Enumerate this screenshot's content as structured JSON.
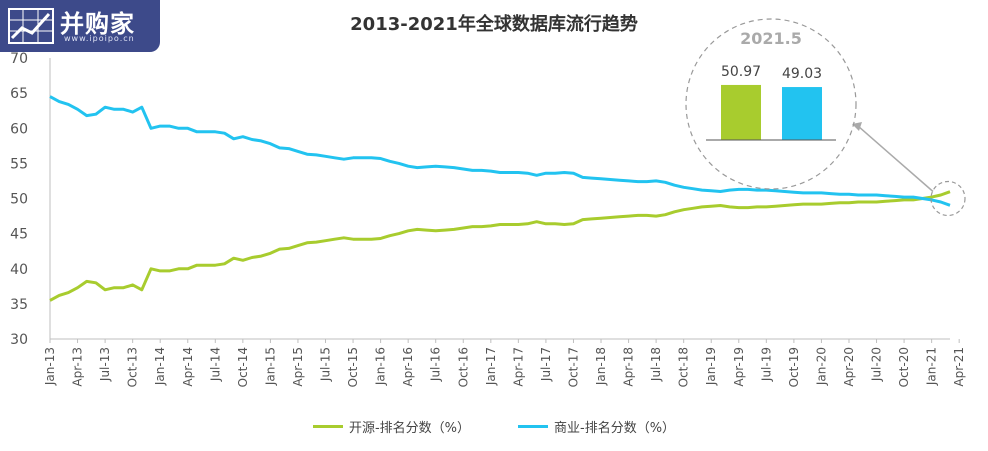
{
  "logo": {
    "name": "并购家",
    "sub": "www.ipoipo.cn"
  },
  "colors": {
    "open_source": "#a8cc2e",
    "commercial": "#22c3f0",
    "logo_bg": "#3d4a8a"
  },
  "chart_data": {
    "type": "line",
    "title": "2013-2021年全球数据库流行趋势",
    "ylim": [
      30,
      70
    ],
    "yticks": [
      30,
      35,
      40,
      45,
      50,
      55,
      60,
      65,
      70
    ],
    "x_start": "Jan-13",
    "x_end": "Jun-21",
    "xtick_labels": [
      "Jan-13",
      "Apr-13",
      "Jul-13",
      "Oct-13",
      "Jan-14",
      "Apr-14",
      "Jul-14",
      "Oct-14",
      "Jan-15",
      "Apr-15",
      "Jul-15",
      "Oct-15",
      "Jan-16",
      "Apr-16",
      "Jul-16",
      "Oct-16",
      "Jan-17",
      "Apr-17",
      "Jul-17",
      "Oct-17",
      "Jan-18",
      "Apr-18",
      "Jul-18",
      "Oct-18",
      "Jan-19",
      "Apr-19",
      "Jul-19",
      "Oct-19",
      "Jan-20",
      "Apr-20",
      "Jul-20",
      "Oct-20",
      "Jan-21",
      "Apr-21"
    ],
    "series": [
      {
        "name": "开源-排名分数（%）",
        "color": "#a8cc2e",
        "values": [
          35.5,
          36.2,
          36.6,
          37.3,
          38.2,
          38.0,
          37.0,
          37.3,
          37.3,
          37.7,
          37.0,
          40.0,
          39.7,
          39.7,
          40.0,
          40.0,
          40.5,
          40.5,
          40.5,
          40.7,
          41.5,
          41.2,
          41.6,
          41.8,
          42.2,
          42.8,
          42.9,
          43.3,
          43.7,
          43.8,
          44.0,
          44.2,
          44.4,
          44.2,
          44.2,
          44.2,
          44.3,
          44.7,
          45.0,
          45.4,
          45.6,
          45.5,
          45.4,
          45.5,
          45.6,
          45.8,
          46.0,
          46.0,
          46.1,
          46.3,
          46.3,
          46.3,
          46.4,
          46.7,
          46.4,
          46.4,
          46.3,
          46.4,
          47.0,
          47.1,
          47.2,
          47.3,
          47.4,
          47.5,
          47.6,
          47.6,
          47.5,
          47.7,
          48.1,
          48.4,
          48.6,
          48.8,
          48.9,
          49.0,
          48.8,
          48.7,
          48.7,
          48.8,
          48.8,
          48.9,
          49.0,
          49.1,
          49.2,
          49.2,
          49.2,
          49.3,
          49.4,
          49.4,
          49.5,
          49.5,
          49.5,
          49.6,
          49.7,
          49.8,
          49.8,
          50.0,
          50.2,
          50.5,
          50.97
        ]
      },
      {
        "name": "商业-排名分数（%）",
        "color": "#22c3f0",
        "values": [
          64.5,
          63.8,
          63.4,
          62.7,
          61.8,
          62.0,
          63.0,
          62.7,
          62.7,
          62.3,
          63.0,
          60.0,
          60.3,
          60.3,
          60.0,
          60.0,
          59.5,
          59.5,
          59.5,
          59.3,
          58.5,
          58.8,
          58.4,
          58.2,
          57.8,
          57.2,
          57.1,
          56.7,
          56.3,
          56.2,
          56.0,
          55.8,
          55.6,
          55.8,
          55.8,
          55.8,
          55.7,
          55.3,
          55.0,
          54.6,
          54.4,
          54.5,
          54.6,
          54.5,
          54.4,
          54.2,
          54.0,
          54.0,
          53.9,
          53.7,
          53.7,
          53.7,
          53.6,
          53.3,
          53.6,
          53.6,
          53.7,
          53.6,
          53.0,
          52.9,
          52.8,
          52.7,
          52.6,
          52.5,
          52.4,
          52.4,
          52.5,
          52.3,
          51.9,
          51.6,
          51.4,
          51.2,
          51.1,
          51.0,
          51.2,
          51.3,
          51.3,
          51.2,
          51.2,
          51.1,
          51.0,
          50.9,
          50.8,
          50.8,
          50.8,
          50.7,
          50.6,
          50.6,
          50.5,
          50.5,
          50.5,
          50.4,
          50.3,
          50.2,
          50.2,
          50.0,
          49.8,
          49.5,
          49.03
        ]
      }
    ],
    "callout": {
      "label": "2021.5",
      "values": [
        50.97,
        49.03
      ],
      "colors": [
        "#a8cc2e",
        "#22c3f0"
      ]
    },
    "legend_position": "bottom",
    "grid": false
  }
}
